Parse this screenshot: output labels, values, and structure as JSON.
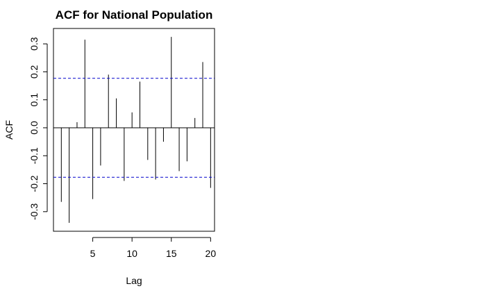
{
  "chart_data": {
    "type": "bar",
    "title": "ACF for National Population",
    "xlabel": "Lag",
    "ylabel": "ACF",
    "x": [
      1,
      2,
      3,
      4,
      5,
      6,
      7,
      8,
      9,
      10,
      11,
      12,
      13,
      14,
      15,
      16,
      17,
      18,
      19,
      20
    ],
    "values": [
      -0.265,
      -0.34,
      0.02,
      0.315,
      -0.255,
      -0.135,
      0.19,
      0.105,
      -0.19,
      0.055,
      0.165,
      -0.115,
      -0.185,
      -0.05,
      0.325,
      -0.155,
      -0.12,
      0.035,
      0.235,
      -0.215
    ],
    "confidence_band": 0.177,
    "confidence_color": "#0000cc",
    "xlim": [
      0,
      20.5
    ],
    "ylim": [
      -0.37,
      0.355
    ],
    "xticks": [
      5,
      10,
      15,
      20
    ],
    "xtick_labels": [
      "5",
      "10",
      "15",
      "20"
    ],
    "yticks": [
      -0.3,
      -0.2,
      -0.1,
      0.0,
      0.1,
      0.2,
      0.3
    ],
    "ytick_labels": [
      "-0.3",
      "-0.2",
      "-0.1",
      "0.0",
      "0.1",
      "0.2",
      "0.3"
    ],
    "grid": false
  }
}
